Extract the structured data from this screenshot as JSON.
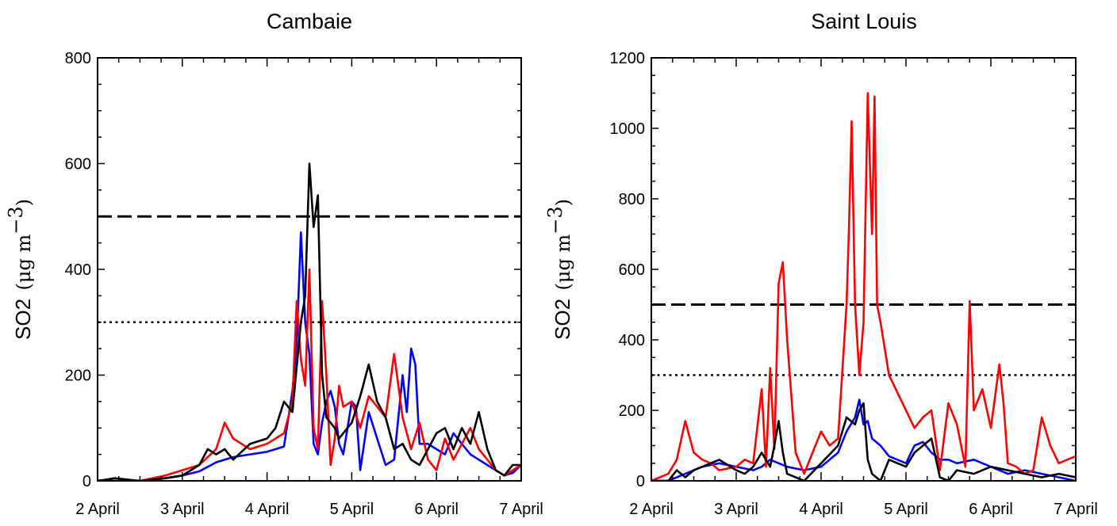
{
  "chart_data": [
    {
      "type": "line",
      "title": "Cambaie",
      "ylabel": "SO2",
      "ylabel_unit": "μg m",
      "ylabel_exponent": "−3",
      "ylim": [
        0,
        800
      ],
      "yticks": [
        0,
        200,
        400,
        600,
        800
      ],
      "xlim": [
        2,
        7
      ],
      "xticks": [
        2,
        3,
        4,
        5,
        6,
        7
      ],
      "xtick_labels": [
        "2 April",
        "3 April",
        "4 April",
        "5 April",
        "6 April",
        "7 April"
      ],
      "reference_lines": [
        {
          "value": 500,
          "style": "dashed",
          "color": "#000000"
        },
        {
          "value": 300,
          "style": "dotted",
          "color": "#000000"
        }
      ],
      "series": [
        {
          "color": "#0000ff",
          "x": [
            2.0,
            2.2,
            2.5,
            2.8,
            3.0,
            3.2,
            3.4,
            3.6,
            3.8,
            4.0,
            4.1,
            4.2,
            4.3,
            4.35,
            4.4,
            4.45,
            4.5,
            4.55,
            4.6,
            4.65,
            4.7,
            4.75,
            4.8,
            4.85,
            4.9,
            5.0,
            5.05,
            5.1,
            5.2,
            5.3,
            5.4,
            5.5,
            5.6,
            5.65,
            5.7,
            5.75,
            5.8,
            5.9,
            6.0,
            6.1,
            6.2,
            6.3,
            6.4,
            6.5,
            6.6,
            6.7,
            6.8,
            6.9,
            7.0
          ],
          "y": [
            0,
            0,
            0,
            5,
            10,
            18,
            35,
            45,
            50,
            55,
            60,
            65,
            170,
            260,
            470,
            300,
            240,
            70,
            50,
            110,
            150,
            170,
            140,
            70,
            50,
            150,
            140,
            20,
            130,
            80,
            30,
            40,
            200,
            130,
            250,
            220,
            70,
            70,
            60,
            50,
            90,
            70,
            50,
            40,
            30,
            20,
            10,
            15,
            30
          ]
        },
        {
          "color": "#ff0000",
          "x": [
            2.0,
            2.2,
            2.5,
            2.8,
            3.0,
            3.2,
            3.4,
            3.5,
            3.6,
            3.8,
            4.0,
            4.1,
            4.2,
            4.3,
            4.35,
            4.4,
            4.45,
            4.5,
            4.55,
            4.6,
            4.65,
            4.7,
            4.75,
            4.8,
            4.85,
            4.9,
            5.0,
            5.1,
            5.2,
            5.3,
            5.4,
            5.5,
            5.6,
            5.7,
            5.8,
            5.9,
            6.0,
            6.1,
            6.2,
            6.3,
            6.4,
            6.5,
            6.6,
            6.7,
            6.8,
            6.9,
            7.0
          ],
          "y": [
            0,
            0,
            0,
            10,
            20,
            30,
            60,
            110,
            80,
            60,
            70,
            80,
            90,
            150,
            340,
            230,
            180,
            400,
            100,
            60,
            340,
            200,
            30,
            80,
            180,
            140,
            150,
            100,
            160,
            140,
            120,
            240,
            120,
            60,
            110,
            40,
            20,
            80,
            40,
            70,
            100,
            60,
            40,
            20,
            10,
            20,
            30
          ]
        },
        {
          "color": "#000000",
          "x": [
            2.0,
            2.2,
            2.5,
            2.8,
            3.0,
            3.2,
            3.3,
            3.4,
            3.5,
            3.6,
            3.8,
            4.0,
            4.1,
            4.2,
            4.3,
            4.4,
            4.45,
            4.5,
            4.55,
            4.6,
            4.65,
            4.7,
            4.75,
            4.8,
            4.85,
            4.9,
            5.0,
            5.1,
            5.2,
            5.3,
            5.4,
            5.5,
            5.6,
            5.7,
            5.8,
            5.9,
            6.0,
            6.1,
            6.2,
            6.3,
            6.4,
            6.5,
            6.6,
            6.7,
            6.8,
            6.9,
            7.0
          ],
          "y": [
            0,
            5,
            0,
            5,
            10,
            30,
            60,
            50,
            60,
            40,
            70,
            80,
            100,
            150,
            130,
            300,
            350,
            600,
            480,
            540,
            200,
            120,
            110,
            100,
            80,
            90,
            110,
            160,
            220,
            150,
            120,
            60,
            70,
            40,
            30,
            60,
            90,
            100,
            60,
            100,
            70,
            130,
            60,
            20,
            10,
            30,
            30
          ]
        }
      ]
    },
    {
      "type": "line",
      "title": "Saint Louis",
      "ylabel": "SO2",
      "ylabel_unit": "μg m",
      "ylabel_exponent": "−3",
      "ylim": [
        0,
        1200
      ],
      "yticks": [
        0,
        200,
        400,
        600,
        800,
        1000,
        1200
      ],
      "xlim": [
        2,
        7
      ],
      "xticks": [
        2,
        3,
        4,
        5,
        6,
        7
      ],
      "xtick_labels": [
        "2 April",
        "3 April",
        "4 April",
        "5 April",
        "6 April",
        "7 April"
      ],
      "reference_lines": [
        {
          "value": 500,
          "style": "dashed",
          "color": "#000000"
        },
        {
          "value": 300,
          "style": "dotted",
          "color": "#000000"
        }
      ],
      "series": [
        {
          "color": "#0000ff",
          "x": [
            2.0,
            2.2,
            2.4,
            2.6,
            2.8,
            3.0,
            3.2,
            3.3,
            3.4,
            3.5,
            3.6,
            3.8,
            4.0,
            4.2,
            4.3,
            4.4,
            4.45,
            4.5,
            4.55,
            4.6,
            4.7,
            4.8,
            5.0,
            5.1,
            5.2,
            5.3,
            5.4,
            5.5,
            5.6,
            5.8,
            6.0,
            6.2,
            6.4,
            6.6,
            6.8,
            7.0
          ],
          "y": [
            0,
            0,
            20,
            40,
            50,
            40,
            30,
            40,
            60,
            50,
            40,
            30,
            40,
            80,
            140,
            180,
            230,
            160,
            170,
            120,
            100,
            70,
            50,
            100,
            110,
            80,
            60,
            60,
            50,
            60,
            40,
            20,
            30,
            20,
            10,
            0
          ]
        },
        {
          "color": "#ff0000",
          "x": [
            2.0,
            2.2,
            2.3,
            2.4,
            2.5,
            2.6,
            2.7,
            2.8,
            3.0,
            3.1,
            3.2,
            3.3,
            3.35,
            3.4,
            3.45,
            3.5,
            3.55,
            3.6,
            3.7,
            3.8,
            4.0,
            4.1,
            4.2,
            4.3,
            4.33,
            4.36,
            4.4,
            4.45,
            4.5,
            4.55,
            4.6,
            4.63,
            4.66,
            4.7,
            4.8,
            5.0,
            5.1,
            5.2,
            5.3,
            5.4,
            5.5,
            5.6,
            5.7,
            5.75,
            5.8,
            5.9,
            6.0,
            6.1,
            6.15,
            6.2,
            6.3,
            6.4,
            6.5,
            6.6,
            6.7,
            6.8,
            6.9,
            7.0
          ],
          "y": [
            0,
            20,
            60,
            170,
            80,
            60,
            50,
            30,
            40,
            60,
            50,
            260,
            40,
            320,
            90,
            560,
            620,
            400,
            80,
            20,
            140,
            100,
            120,
            500,
            730,
            1020,
            500,
            300,
            450,
            1100,
            700,
            1090,
            500,
            450,
            300,
            200,
            150,
            180,
            200,
            30,
            220,
            160,
            40,
            510,
            200,
            260,
            150,
            330,
            220,
            50,
            40,
            20,
            30,
            180,
            100,
            50,
            60,
            70
          ]
        },
        {
          "color": "#000000",
          "x": [
            2.0,
            2.2,
            2.3,
            2.4,
            2.5,
            2.6,
            2.7,
            2.8,
            3.0,
            3.1,
            3.2,
            3.3,
            3.4,
            3.45,
            3.5,
            3.55,
            3.6,
            3.7,
            3.8,
            4.0,
            4.2,
            4.3,
            4.35,
            4.4,
            4.45,
            4.5,
            4.55,
            4.6,
            4.7,
            4.8,
            5.0,
            5.1,
            5.2,
            5.3,
            5.4,
            5.5,
            5.6,
            5.8,
            6.0,
            6.2,
            6.4,
            6.6,
            6.8,
            7.0
          ],
          "y": [
            0,
            0,
            30,
            10,
            30,
            40,
            50,
            60,
            30,
            20,
            40,
            80,
            40,
            100,
            170,
            80,
            20,
            10,
            0,
            50,
            100,
            180,
            170,
            160,
            200,
            220,
            60,
            20,
            0,
            60,
            40,
            80,
            100,
            120,
            10,
            0,
            30,
            20,
            40,
            30,
            20,
            10,
            20,
            10
          ]
        }
      ]
    }
  ]
}
